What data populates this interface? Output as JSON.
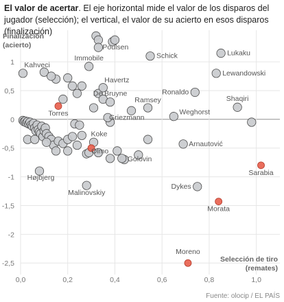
{
  "header": {
    "bold": "El valor de acertar",
    "rest": ". El eje horizontal mide el valor de los disparos del jugador (selección); el vertical, el valor de su acierto en esos disparos (finalización)"
  },
  "footer": {
    "source": "Fuente: olocip / EL PAÍS"
  },
  "colors": {
    "gray_fill": "#c9cbce",
    "gray_stroke": "#4a4a4a",
    "red_fill": "#e8624f",
    "red_stroke": "#b23a2a",
    "grid": "#e6e6e6",
    "zero": "#9a9a9a"
  },
  "chart_data": {
    "type": "scatter",
    "ylabel_lines": [
      "Finalización",
      "(acierto)"
    ],
    "xlabel_lines": [
      "Selección de tiro",
      "(remates)"
    ],
    "xlim": [
      0,
      1.1
    ],
    "ylim": [
      -2.7,
      1.55
    ],
    "xticks": [
      0,
      0.2,
      0.4,
      0.6,
      0.8,
      1.0
    ],
    "xtick_labels": [
      "0,0",
      "0,2",
      "0,4",
      "0,6",
      "0,8",
      "1,0"
    ],
    "yticks": [
      1,
      0.5,
      0,
      -0.5,
      -1,
      -1.5,
      -2,
      -2.5
    ],
    "ytick_labels": [
      "1",
      "0,5",
      "0",
      "-0,5",
      "-1",
      "-1,5",
      "-2",
      "-2,5"
    ],
    "grid": true,
    "labeled_points": [
      {
        "name": "Kahveci",
        "x": 0.01,
        "y": 0.8,
        "highlight": false
      },
      {
        "name": "Immobile",
        "x": 0.29,
        "y": 0.92,
        "highlight": false
      },
      {
        "name": "Poulsen",
        "x": 0.33,
        "y": 1.25,
        "highlight": false
      },
      {
        "name": "Schick",
        "x": 0.55,
        "y": 1.1,
        "highlight": false
      },
      {
        "name": "Lukaku",
        "x": 0.85,
        "y": 1.15,
        "highlight": false
      },
      {
        "name": "Lewandowski",
        "x": 0.83,
        "y": 0.8,
        "highlight": false
      },
      {
        "name": "Havertz",
        "x": 0.35,
        "y": 0.55,
        "highlight": false
      },
      {
        "name": "De Bruyne",
        "x": 0.38,
        "y": 0.3,
        "highlight": false
      },
      {
        "name": "Ronaldo",
        "x": 0.74,
        "y": 0.47,
        "highlight": false
      },
      {
        "name": "Shaqiri",
        "x": 0.92,
        "y": 0.21,
        "highlight": false
      },
      {
        "name": "Torres",
        "x": 0.16,
        "y": 0.23,
        "highlight": true
      },
      {
        "name": "Ramsey",
        "x": 0.54,
        "y": 0.2,
        "highlight": false
      },
      {
        "name": "Griezmann",
        "x": 0.37,
        "y": 0.03,
        "highlight": false
      },
      {
        "name": "Weghorst",
        "x": 0.65,
        "y": 0.05,
        "highlight": false
      },
      {
        "name": "Arnautović",
        "x": 0.69,
        "y": -0.43,
        "highlight": false
      },
      {
        "name": "Koke",
        "x": 0.31,
        "y": -0.4,
        "highlight": false
      },
      {
        "name": "Olmo",
        "x": 0.3,
        "y": -0.5,
        "highlight": true
      },
      {
        "name": "Golovin",
        "x": 0.43,
        "y": -0.68,
        "highlight": false
      },
      {
        "name": "Sarabia",
        "x": 1.02,
        "y": -0.8,
        "highlight": true
      },
      {
        "name": "Højbjerg",
        "x": 0.08,
        "y": -0.9,
        "highlight": false
      },
      {
        "name": "Malinovskiy",
        "x": 0.28,
        "y": -1.15,
        "highlight": false
      },
      {
        "name": "Dykes",
        "x": 0.75,
        "y": -1.17,
        "highlight": false
      },
      {
        "name": "Morata",
        "x": 0.84,
        "y": -1.43,
        "highlight": true
      },
      {
        "name": "Moreno",
        "x": 0.71,
        "y": -2.5,
        "highlight": true
      }
    ],
    "other_points": [
      {
        "x": 0.01,
        "y": -0.02
      },
      {
        "x": 0.015,
        "y": -0.04
      },
      {
        "x": 0.02,
        "y": -0.03
      },
      {
        "x": 0.025,
        "y": -0.06
      },
      {
        "x": 0.03,
        "y": -0.04
      },
      {
        "x": 0.035,
        "y": -0.08
      },
      {
        "x": 0.04,
        "y": -0.05
      },
      {
        "x": 0.045,
        "y": -0.1
      },
      {
        "x": 0.05,
        "y": -0.12
      },
      {
        "x": 0.055,
        "y": -0.07
      },
      {
        "x": 0.06,
        "y": -0.15
      },
      {
        "x": 0.065,
        "y": -0.2
      },
      {
        "x": 0.07,
        "y": -0.1
      },
      {
        "x": 0.075,
        "y": -0.18
      },
      {
        "x": 0.08,
        "y": -0.22
      },
      {
        "x": 0.085,
        "y": -0.25
      },
      {
        "x": 0.09,
        "y": -0.12
      },
      {
        "x": 0.095,
        "y": -0.3
      },
      {
        "x": 0.1,
        "y": -0.2
      },
      {
        "x": 0.105,
        "y": -0.15
      },
      {
        "x": 0.11,
        "y": -0.25
      },
      {
        "x": 0.12,
        "y": -0.3
      },
      {
        "x": 0.13,
        "y": -0.35
      },
      {
        "x": 0.14,
        "y": -0.45
      },
      {
        "x": 0.15,
        "y": -0.55
      },
      {
        "x": 0.16,
        "y": -0.38
      },
      {
        "x": 0.18,
        "y": -0.42
      },
      {
        "x": 0.2,
        "y": -0.35
      },
      {
        "x": 0.22,
        "y": -0.3
      },
      {
        "x": 0.24,
        "y": -0.45
      },
      {
        "x": 0.26,
        "y": -0.28
      },
      {
        "x": 0.28,
        "y": -0.6
      },
      {
        "x": 0.23,
        "y": -0.08
      },
      {
        "x": 0.25,
        "y": -0.1
      },
      {
        "x": 0.03,
        "y": -0.35
      },
      {
        "x": 0.11,
        "y": -0.4
      },
      {
        "x": 0.15,
        "y": 0.7
      },
      {
        "x": 0.2,
        "y": 0.72
      },
      {
        "x": 0.22,
        "y": 0.58
      },
      {
        "x": 0.24,
        "y": 0.45
      },
      {
        "x": 0.1,
        "y": 0.82
      },
      {
        "x": 0.13,
        "y": 0.75
      },
      {
        "x": 0.18,
        "y": 0.35
      },
      {
        "x": 0.26,
        "y": 0.58
      },
      {
        "x": 0.33,
        "y": 0.45
      },
      {
        "x": 0.35,
        "y": 0.35
      },
      {
        "x": 0.31,
        "y": 0.2
      },
      {
        "x": 0.32,
        "y": 1.45
      },
      {
        "x": 0.33,
        "y": 1.38
      },
      {
        "x": 0.39,
        "y": 1.35
      },
      {
        "x": 0.4,
        "y": 1.38
      },
      {
        "x": 0.38,
        "y": -0.05
      },
      {
        "x": 0.41,
        "y": -0.55
      },
      {
        "x": 0.38,
        "y": -0.68
      },
      {
        "x": 0.5,
        "y": -0.62
      },
      {
        "x": 0.54,
        "y": -0.35
      },
      {
        "x": 0.44,
        "y": -0.7
      },
      {
        "x": 0.29,
        "y": -0.58
      },
      {
        "x": 0.33,
        "y": -0.58
      },
      {
        "x": 0.98,
        "y": -0.05
      },
      {
        "x": 0.47,
        "y": 0.15
      },
      {
        "x": 0.2,
        "y": -0.55
      },
      {
        "x": 0.06,
        "y": -0.35
      }
    ]
  }
}
